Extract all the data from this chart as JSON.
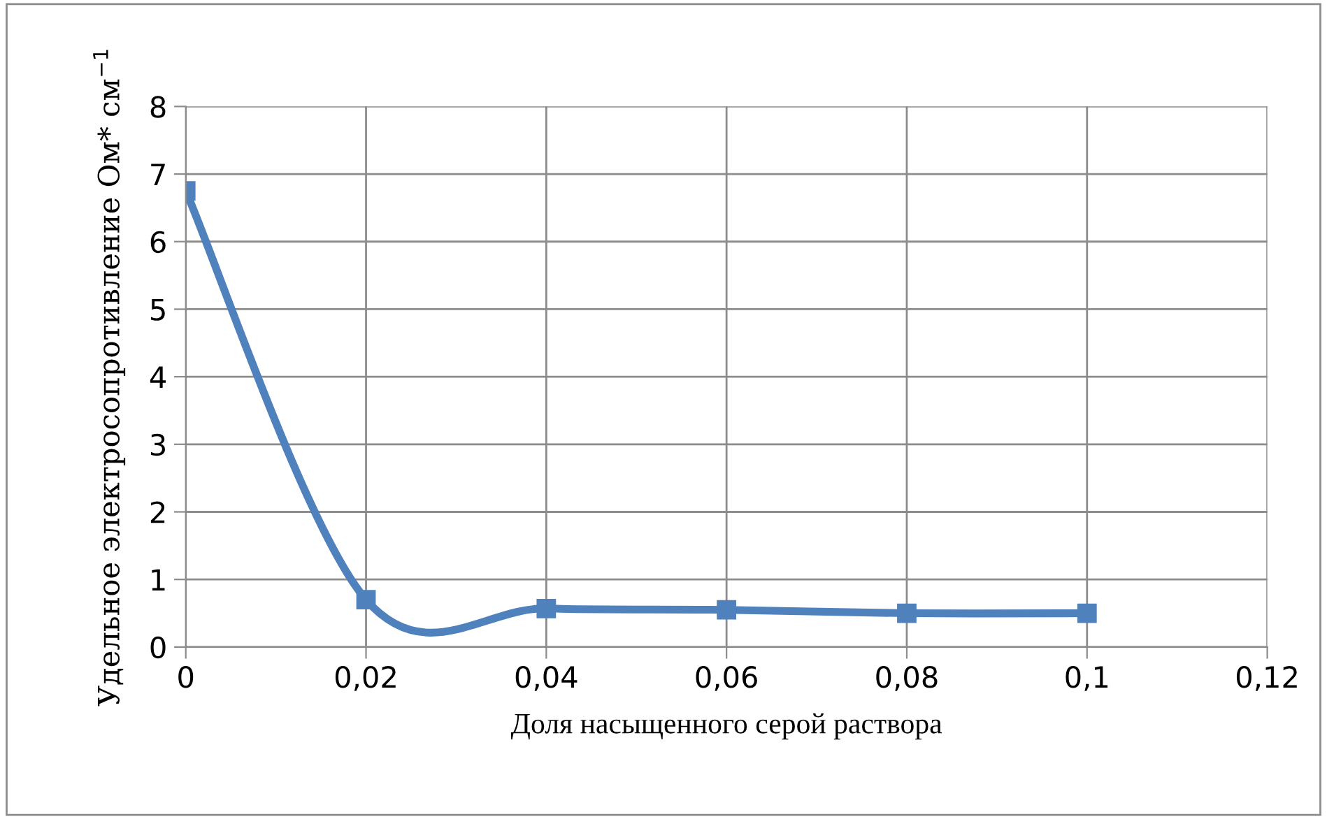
{
  "chart_data": {
    "type": "line",
    "xlabel": "Доля насыщенного серой раствора",
    "ylabel": "Удельное электросопротивление Ом* см$^{−1}$",
    "x": [
      0,
      0.02,
      0.04,
      0.06,
      0.08,
      0.1
    ],
    "series": [
      {
        "color": "#4f81bd",
        "values": [
          6.75,
          0.7,
          0.57,
          0.55,
          0.5,
          0.5
        ]
      }
    ],
    "xlim": [
      0,
      0.12
    ],
    "ylim": [
      0,
      8
    ],
    "xticks": [
      0,
      {
        "value": 0.02,
        "label": "0,02"
      },
      {
        "value": 0.04,
        "label": "0,04"
      },
      {
        "value": 0.06,
        "label": "0,06"
      },
      {
        "value": 0.08,
        "label": "0,08"
      },
      {
        "value": 0.1,
        "label": "0,1"
      },
      {
        "value": 0.12,
        "label": "0,12"
      }
    ],
    "yticks": [
      0,
      1,
      2,
      3,
      4,
      5,
      6,
      7,
      8
    ],
    "grid": true,
    "marker": "square",
    "line_style": "solid",
    "legend": false
  }
}
